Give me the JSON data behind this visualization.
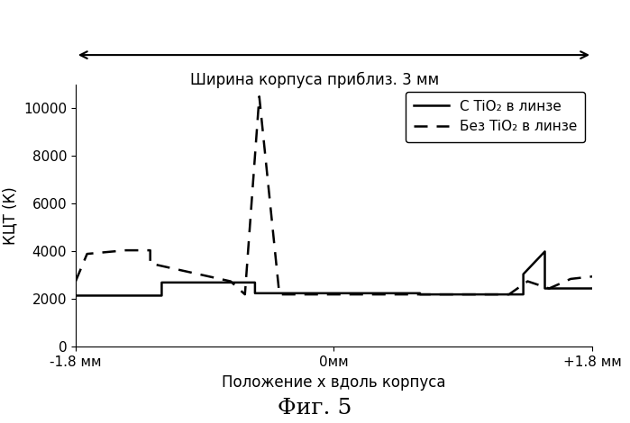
{
  "title_arrow": "Ширина корпуса приблиз. 3 мм",
  "xlabel": "Положение x вдоль корпуса",
  "ylabel": "КЦТ (К)",
  "figure_label": "Фиг. 5",
  "xlim": [
    -1.8,
    1.8
  ],
  "ylim": [
    0,
    11000
  ],
  "yticks": [
    0,
    2000,
    4000,
    6000,
    8000,
    10000
  ],
  "xtick_labels": [
    "-1.8 мм",
    "0мм",
    "+1.8 мм"
  ],
  "xtick_positions": [
    -1.8,
    0.0,
    1.8
  ],
  "legend_solid": "С TiO₂ в линзе",
  "legend_dashed": "Без TiO₂ в линзе",
  "solid_x": [
    -1.8,
    -1.2,
    -1.2,
    -0.55,
    -0.55,
    0.6,
    0.6,
    1.32,
    1.32,
    1.47,
    1.47,
    1.8
  ],
  "solid_y": [
    2150,
    2150,
    2700,
    2700,
    2250,
    2250,
    2200,
    2200,
    3050,
    4000,
    2450,
    2450
  ],
  "dashed_x": [
    -1.8,
    -1.72,
    -1.45,
    -1.28,
    -1.28,
    -0.72,
    -0.62,
    -0.52,
    -0.52,
    -0.38,
    -0.38,
    0.0,
    1.22,
    1.35,
    1.5,
    1.65,
    1.8
  ],
  "dashed_y": [
    2750,
    3900,
    4050,
    4050,
    3500,
    2750,
    2200,
    10500,
    10500,
    2200,
    2200,
    2200,
    2200,
    2750,
    2450,
    2850,
    2950
  ],
  "line_color": "#000000",
  "background_color": "#ffffff"
}
